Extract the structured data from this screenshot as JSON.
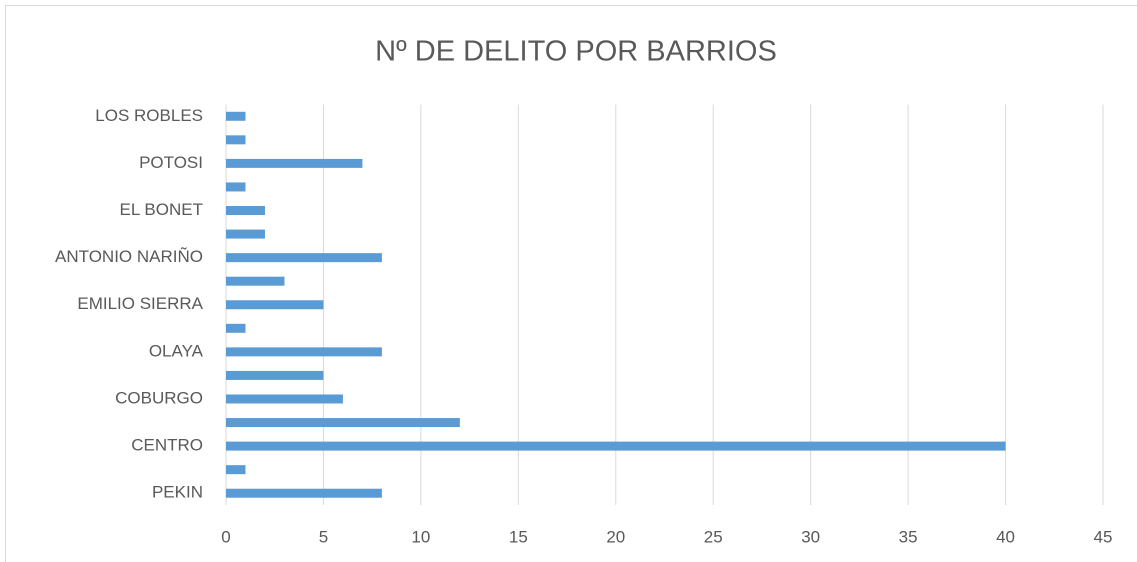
{
  "chart_data": {
    "type": "hbar",
    "title": "Nº DE DELITO POR BARRIOS",
    "categories": [
      "PEKIN",
      null,
      "CENTRO",
      null,
      "COBURGO",
      null,
      "OLAYA",
      null,
      "EMILIO SIERRA",
      null,
      "ANTONIO NARIÑO",
      null,
      "EL BONET",
      null,
      "POTOSI",
      null,
      "LOS ROBLES"
    ],
    "values": [
      8,
      1,
      40,
      12,
      6,
      5,
      8,
      1,
      5,
      3,
      8,
      2,
      2,
      1,
      7,
      1,
      1
    ],
    "color": "#5b9bd5",
    "xlim": [
      0,
      45
    ],
    "xticks": [
      0,
      5,
      10,
      15,
      20,
      25,
      30,
      35,
      40,
      45
    ],
    "grid": true
  }
}
